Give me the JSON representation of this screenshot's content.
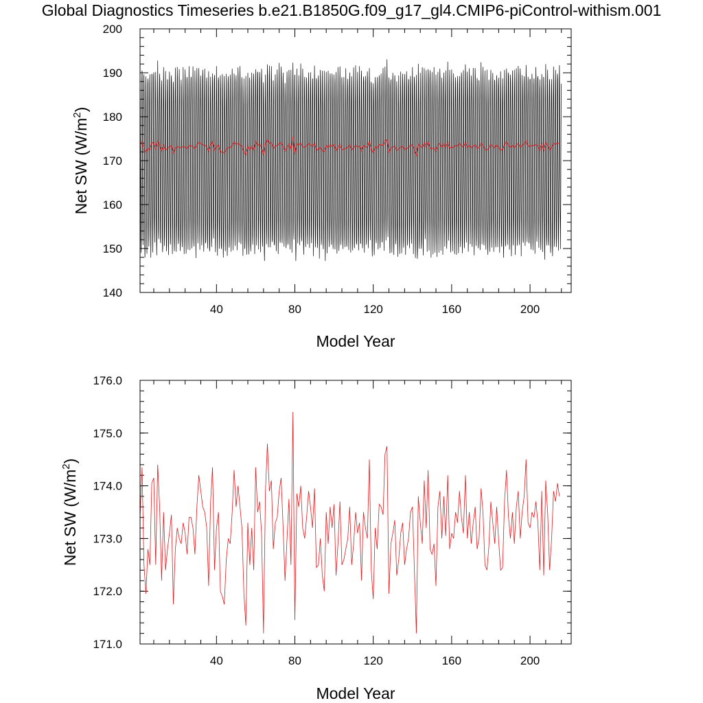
{
  "title": "Global Diagnostics Timeseries b.e21.B1850G.f09_g17_gl4.CMIP6-piControl-withism.001",
  "chart_data": [
    {
      "type": "line",
      "xlabel": "Model Year",
      "ylabel": "Net SW (W/m²)",
      "ylim": [
        140,
        200
      ],
      "xlim": [
        1,
        221
      ],
      "yticks": [
        "140",
        "150",
        "160",
        "170",
        "180",
        "190",
        "200"
      ],
      "xticks": [
        "40",
        "80",
        "120",
        "160",
        "200"
      ],
      "monthly_series": {
        "color": "#000000",
        "description_range": [
          147,
          194
        ],
        "seasonal_peak_typical": 190,
        "seasonal_trough_typical": 150
      },
      "annual_series_color": "#e0191c"
    },
    {
      "type": "line",
      "xlabel": "Model Year",
      "ylabel": "Net SW (W/m²)",
      "ylim": [
        171.0,
        176.0
      ],
      "xlim": [
        1,
        221
      ],
      "yticks": [
        "171.0",
        "172.0",
        "173.0",
        "174.0",
        "175.0",
        "176.0"
      ],
      "xticks": [
        "40",
        "80",
        "120",
        "160",
        "200"
      ],
      "series_color": "#e0191c",
      "annual_values": [
        173.4,
        174.35,
        172.5,
        171.95,
        172.8,
        172.5,
        174.05,
        174.15,
        172.5,
        174.4,
        173.6,
        172.2,
        173.5,
        172.4,
        172.8,
        173.1,
        173.45,
        171.75,
        172.8,
        173.2,
        173.0,
        172.9,
        173.3,
        173.1,
        172.7,
        173.4,
        173.4,
        173.2,
        172.7,
        173.6,
        174.2,
        173.9,
        173.6,
        173.5,
        173.2,
        172.1,
        173.7,
        174.35,
        172.4,
        173.2,
        173.5,
        172.0,
        171.9,
        171.75,
        172.6,
        173.0,
        172.9,
        173.5,
        174.3,
        173.6,
        174.0,
        173.6,
        173.2,
        171.95,
        171.35,
        173.3,
        172.5,
        173.2,
        172.4,
        174.35,
        173.5,
        173.7,
        173.1,
        171.2,
        173.9,
        174.8,
        173.9,
        174.1,
        172.8,
        173.3,
        173.4,
        173.9,
        174.15,
        173.2,
        172.2,
        173.0,
        173.75,
        172.5,
        175.4,
        171.45,
        173.85,
        173.6,
        174.0,
        173.2,
        173.0,
        173.4,
        173.9,
        173.6,
        173.2,
        173.95,
        172.45,
        172.5,
        173.0,
        172.3,
        172.0,
        173.5,
        172.9,
        173.6,
        173.2,
        173.65,
        172.3,
        172.9,
        173.7,
        172.5,
        172.6,
        172.8,
        173.0,
        173.6,
        172.5,
        172.9,
        173.5,
        173.1,
        173.3,
        172.2,
        173.5,
        173.2,
        173.0,
        174.5,
        172.4,
        171.85,
        173.2,
        172.8,
        173.65,
        173.6,
        173.45,
        174.6,
        174.75,
        171.95,
        172.9,
        173.1,
        173.35,
        172.3,
        172.6,
        173.1,
        173.3,
        172.5,
        172.8,
        173.0,
        173.5,
        173.6,
        172.4,
        171.2,
        173.8,
        173.3,
        172.9,
        174.1,
        173.2,
        174.3,
        172.8,
        172.7,
        172.9,
        172.1,
        173.6,
        173.9,
        173.0,
        173.8,
        173.05,
        174.2,
        172.8,
        173.1,
        173.0,
        173.5,
        173.3,
        173.9,
        173.4,
        173.1,
        174.2,
        173.0,
        173.5,
        172.9,
        173.3,
        173.6,
        172.8,
        173.0,
        173.95,
        173.5,
        172.5,
        172.4,
        172.85,
        173.7,
        173.3,
        172.9,
        173.6,
        172.95,
        172.4,
        172.45,
        173.7,
        174.3,
        173.4,
        173.0,
        173.5,
        172.9,
        173.6,
        173.9,
        173.0,
        173.5,
        173.8,
        174.5,
        173.3,
        173.2,
        173.5,
        173.4,
        173.7,
        173.3,
        172.4,
        173.9,
        172.3,
        174.1,
        173.5,
        172.4,
        173.0,
        173.9,
        173.7,
        174.05,
        173.8
      ]
    }
  ]
}
